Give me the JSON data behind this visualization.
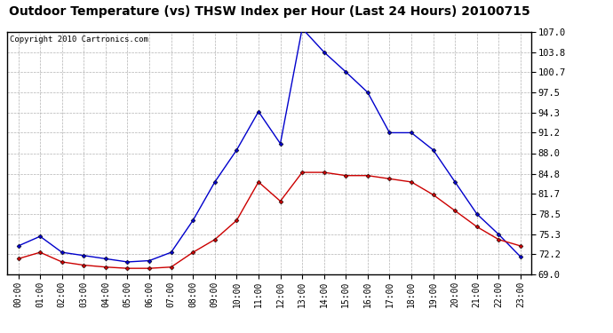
{
  "title": "Outdoor Temperature (vs) THSW Index per Hour (Last 24 Hours) 20100715",
  "copyright": "Copyright 2010 Cartronics.com",
  "hours": [
    "00:00",
    "01:00",
    "02:00",
    "03:00",
    "04:00",
    "05:00",
    "06:00",
    "07:00",
    "08:00",
    "09:00",
    "10:00",
    "11:00",
    "12:00",
    "13:00",
    "14:00",
    "15:00",
    "16:00",
    "17:00",
    "18:00",
    "19:00",
    "20:00",
    "21:00",
    "22:00",
    "23:00"
  ],
  "thsw": [
    73.5,
    75.0,
    72.5,
    72.0,
    71.5,
    71.0,
    71.2,
    72.5,
    77.5,
    83.5,
    88.5,
    94.5,
    89.5,
    107.5,
    103.8,
    100.7,
    97.5,
    91.2,
    91.2,
    88.5,
    83.5,
    78.5,
    75.3,
    71.8
  ],
  "outdoor_temp": [
    71.5,
    72.5,
    71.0,
    70.5,
    70.2,
    70.0,
    70.0,
    70.2,
    72.5,
    74.5,
    77.5,
    83.5,
    80.5,
    85.0,
    85.0,
    84.5,
    84.5,
    84.0,
    83.5,
    81.5,
    79.0,
    76.5,
    74.5,
    73.5
  ],
  "thsw_color": "#0000cc",
  "temp_color": "#cc0000",
  "bg_color": "#ffffff",
  "grid_color": "#aaaaaa",
  "yticks": [
    69.0,
    72.2,
    75.3,
    78.5,
    81.7,
    84.8,
    88.0,
    91.2,
    94.3,
    97.5,
    100.7,
    103.8,
    107.0
  ],
  "ymin": 69.0,
  "ymax": 107.0,
  "title_fontsize": 10,
  "copyright_fontsize": 6.5,
  "tick_fontsize": 7.5
}
